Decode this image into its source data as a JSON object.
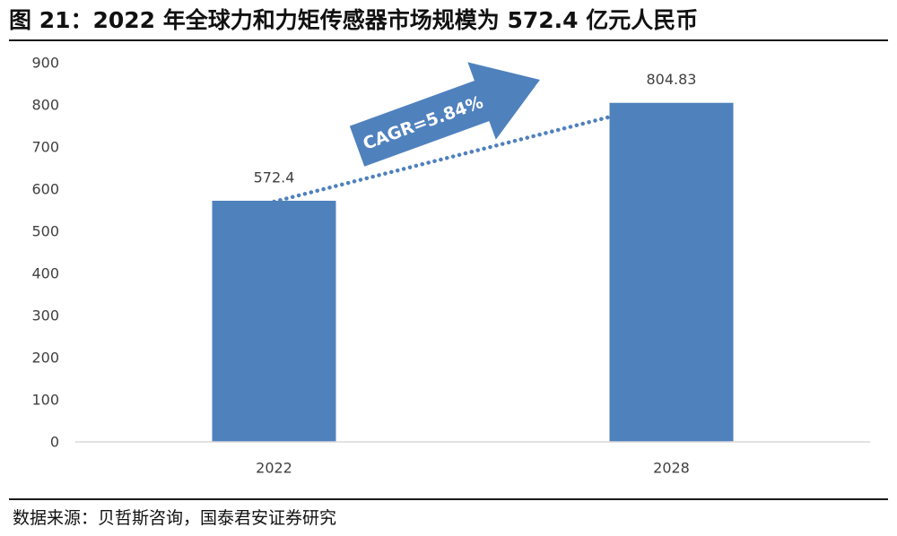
{
  "figure": {
    "title": "图 21：2022 年全球力和力矩传感器市场规模为 572.4 亿元人民币",
    "source": "数据来源：贝哲斯咨询，国泰君安证券研究"
  },
  "chart_data": {
    "type": "bar",
    "categories": [
      "2022",
      "2028"
    ],
    "values": [
      572.4,
      804.83
    ],
    "data_labels": [
      "572.4",
      "804.83"
    ],
    "ylim": [
      0,
      900
    ],
    "yticks": [
      0,
      100,
      200,
      300,
      400,
      500,
      600,
      700,
      800,
      900
    ],
    "grid": false,
    "bar_color": "#4f81bd",
    "trend_line": {
      "style": "dotted",
      "color": "#4f81bd"
    },
    "annotation": {
      "text": "CAGR=5.84%",
      "shape": "arrow",
      "color": "#4f81bd"
    }
  }
}
